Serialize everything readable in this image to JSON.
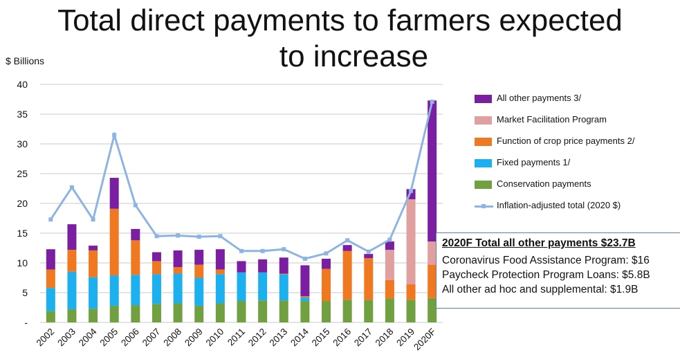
{
  "page": {
    "title_line1": "Total direct payments to farmers expected",
    "title_line2": "to increase"
  },
  "chart_data": {
    "type": "bar",
    "stacked": true,
    "ylabel": "$ Billions",
    "ylim": [
      0,
      40
    ],
    "yticks": [
      "-",
      "5",
      "10",
      "15",
      "20",
      "25",
      "30",
      "35",
      "40"
    ],
    "categories": [
      "2002",
      "2003",
      "2004",
      "2005",
      "2006",
      "2007",
      "2008",
      "2009",
      "2010",
      "2011",
      "2012",
      "2013",
      "2014",
      "2015",
      "2016",
      "2017",
      "2018",
      "2019",
      "2020F"
    ],
    "grid": true,
    "legend_position": "right",
    "series": [
      {
        "name": "Conservation payments",
        "color": "#70a040",
        "values": [
          1.9,
          2.2,
          2.3,
          2.8,
          2.9,
          3.1,
          3.2,
          2.8,
          3.2,
          3.6,
          3.7,
          3.7,
          3.6,
          3.6,
          3.8,
          3.8,
          4.0,
          3.8,
          4.1
        ]
      },
      {
        "name": "Fixed payments 1/",
        "color": "#1cb0ee",
        "values": [
          3.9,
          6.3,
          5.3,
          5.1,
          5.1,
          5.0,
          5.0,
          4.7,
          4.9,
          4.8,
          4.7,
          4.4,
          0.6,
          0,
          0,
          0,
          0,
          0,
          0
        ]
      },
      {
        "name": "Function of crop price payments 2/",
        "color": "#f07820",
        "values": [
          3.1,
          3.7,
          4.5,
          11.2,
          5.8,
          2.2,
          1.1,
          2.2,
          0.8,
          0,
          0,
          0.1,
          0.2,
          5.4,
          8.2,
          7.0,
          3.1,
          2.6,
          5.6
        ]
      },
      {
        "name": "Market Facilitation Program",
        "color": "#e0a0a0",
        "values": [
          0,
          0,
          0,
          0,
          0,
          0,
          0,
          0,
          0,
          0,
          0,
          0,
          0,
          0,
          0,
          0,
          5.1,
          14.3,
          3.9
        ]
      },
      {
        "name": "All other payments 3/",
        "color": "#7b1fa2",
        "values": [
          3.4,
          4.3,
          0.8,
          5.2,
          1.9,
          1.5,
          2.8,
          2.5,
          3.4,
          1.9,
          2.2,
          2.7,
          5.2,
          1.7,
          1.0,
          0.7,
          1.4,
          1.7,
          23.7
        ]
      }
    ],
    "line": {
      "name": "Inflation-adjusted total (2020 $)",
      "color": "#8db4e2",
      "values": [
        17.3,
        22.7,
        17.3,
        31.5,
        19.7,
        14.5,
        14.6,
        14.4,
        14.5,
        12.0,
        12.0,
        12.3,
        10.7,
        11.6,
        13.8,
        11.9,
        13.9,
        22.1,
        37.1
      ]
    },
    "legend_order": [
      "All other payments 3/",
      "Market Facilitation Program",
      "Function of crop price payments 2/",
      "Fixed payments 1/",
      "Conservation payments",
      "Inflation-adjusted total (2020 $)"
    ]
  },
  "note": {
    "heading": "2020F Total all other payments $23.7B",
    "lines": [
      "Coronavirus Food Assistance Program: $16",
      "Paycheck Protection Program Loans:  $5.8B",
      "All other ad hoc and supplemental:  $1.9B"
    ]
  },
  "legend": {
    "items": [
      {
        "label": "All other payments 3/",
        "color": "#7b1fa2"
      },
      {
        "label": "Market Facilitation Program",
        "color": "#e0a0a0"
      },
      {
        "label": "Function of crop price payments 2/",
        "color": "#f07820"
      },
      {
        "label": "Fixed payments 1/",
        "color": "#1cb0ee"
      },
      {
        "label": "Conservation payments",
        "color": "#70a040"
      },
      {
        "label": "Inflation-adjusted total (2020 $)",
        "color": "#8db4e2"
      }
    ]
  }
}
